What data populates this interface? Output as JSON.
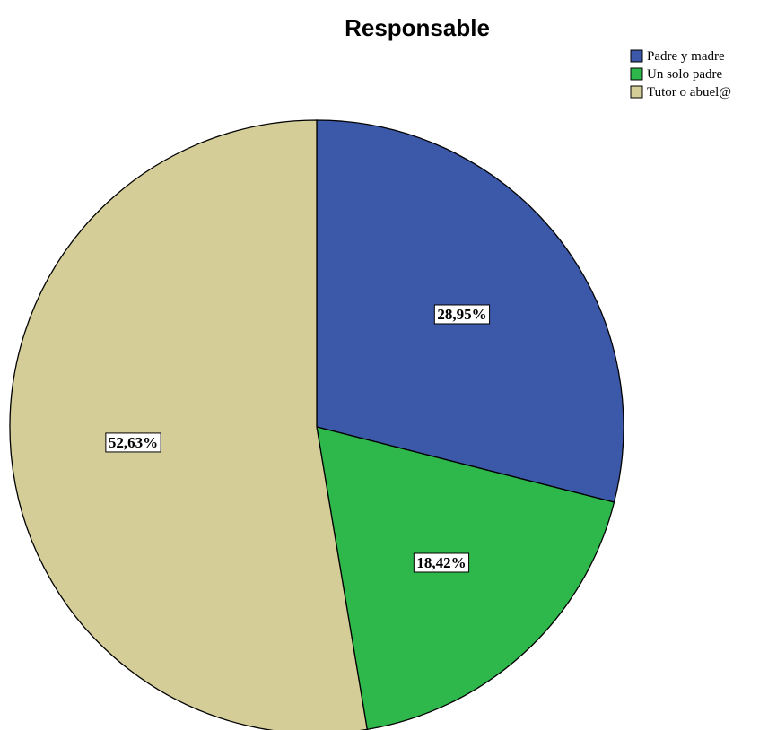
{
  "chart_data": {
    "type": "pie",
    "title": "Responsable",
    "categories": [
      "Padre y madre",
      "Un solo padre",
      "Tutor o abuel@"
    ],
    "values": [
      28.95,
      18.42,
      52.63
    ],
    "data_labels": [
      "28,95%",
      "18,42%",
      "52,63%"
    ],
    "colors": [
      "#3c58a8",
      "#2eb84b",
      "#d4cd98"
    ],
    "legend_position": "top-right",
    "start_angle": "12 o'clock",
    "direction": "clockwise"
  }
}
